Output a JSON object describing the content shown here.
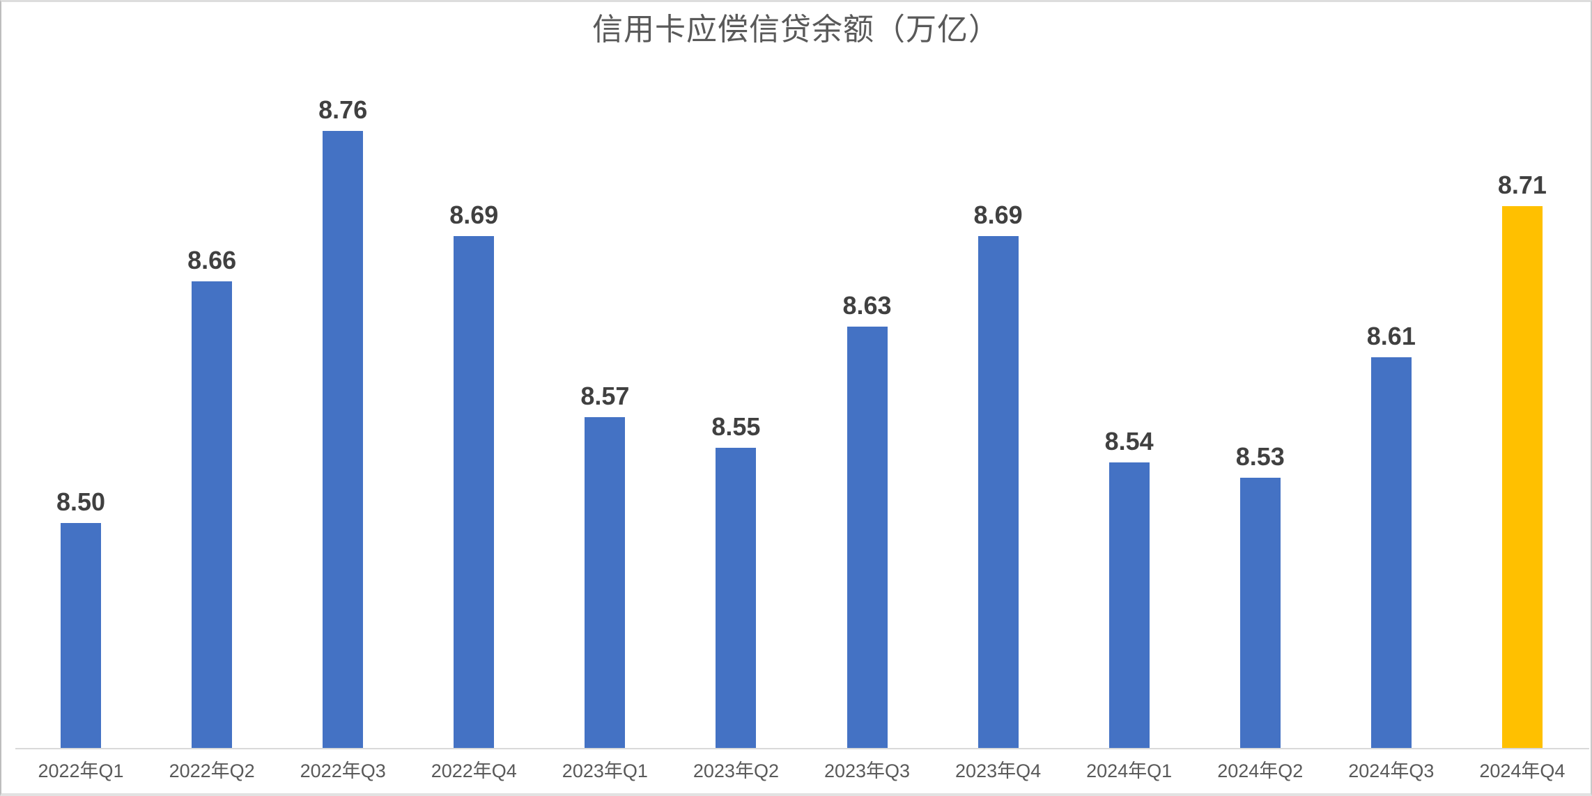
{
  "chart_data": {
    "type": "bar",
    "title": "信用卡应偿信贷余额（万亿）",
    "categories": [
      "2022年Q1",
      "2022年Q2",
      "2022年Q3",
      "2022年Q4",
      "2023年Q1",
      "2023年Q2",
      "2023年Q3",
      "2023年Q4",
      "2024年Q1",
      "2024年Q2",
      "2024年Q3",
      "2024年Q4"
    ],
    "values": [
      8.5,
      8.66,
      8.76,
      8.69,
      8.57,
      8.55,
      8.63,
      8.69,
      8.54,
      8.53,
      8.61,
      8.71
    ],
    "value_labels": [
      "8.50",
      "8.66",
      "8.76",
      "8.69",
      "8.57",
      "8.55",
      "8.63",
      "8.69",
      "8.54",
      "8.53",
      "8.61",
      "8.71"
    ],
    "highlight_index": 11,
    "xlabel": "",
    "ylabel": "",
    "ylim": [
      8.35,
      8.8
    ],
    "grid": false,
    "legend": false,
    "data_labels_position": "above-bar",
    "colors": {
      "bar_default": "#4472C4",
      "bar_highlight": "#FFC000",
      "title_text": "#595959",
      "value_label_text": "#404040",
      "axis_label_text": "#595959",
      "axis_line": "#D9D9D9",
      "background": "#FFFFFF"
    }
  }
}
